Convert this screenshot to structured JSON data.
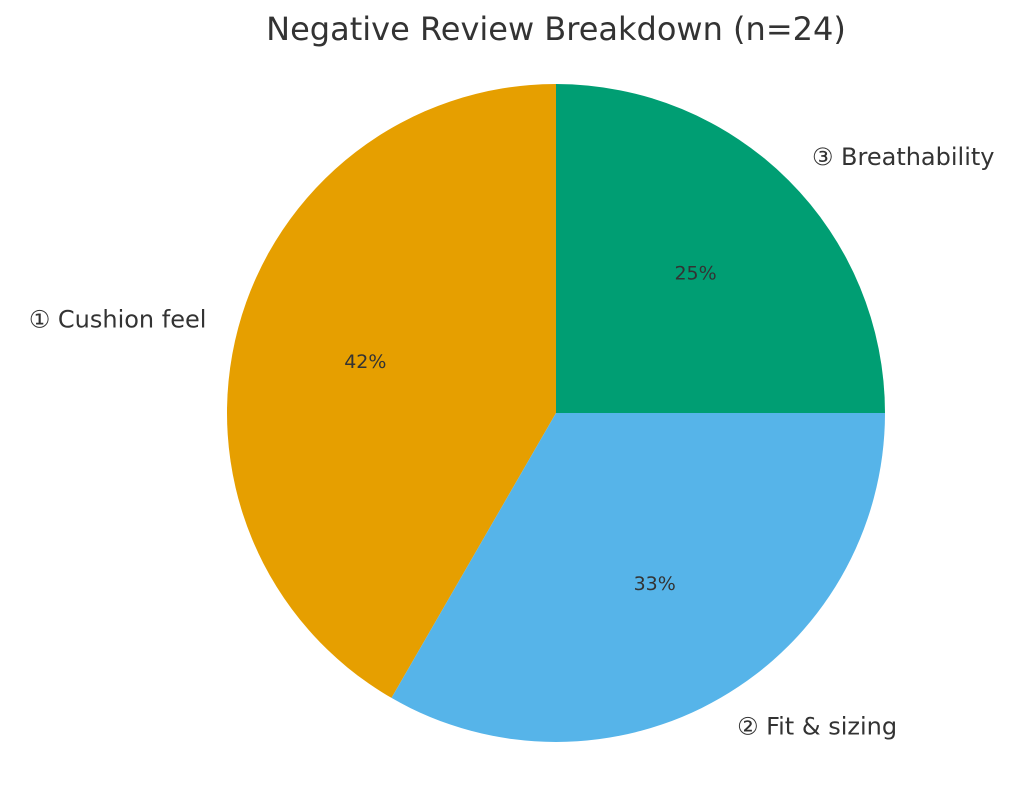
{
  "chart_data": {
    "type": "pie",
    "title": "Negative Review Breakdown (n=24)",
    "start_angle_deg": 90,
    "direction": "counterclockwise",
    "slices": [
      {
        "label": "① Cushion feel",
        "value": 10,
        "pct_label": "42%",
        "color": "#E69F00"
      },
      {
        "label": "② Fit & sizing",
        "value": 8,
        "pct_label": "33%",
        "color": "#56B4E9"
      },
      {
        "label": "③ Breathability",
        "value": 6,
        "pct_label": "25%",
        "color": "#009E73"
      }
    ]
  }
}
